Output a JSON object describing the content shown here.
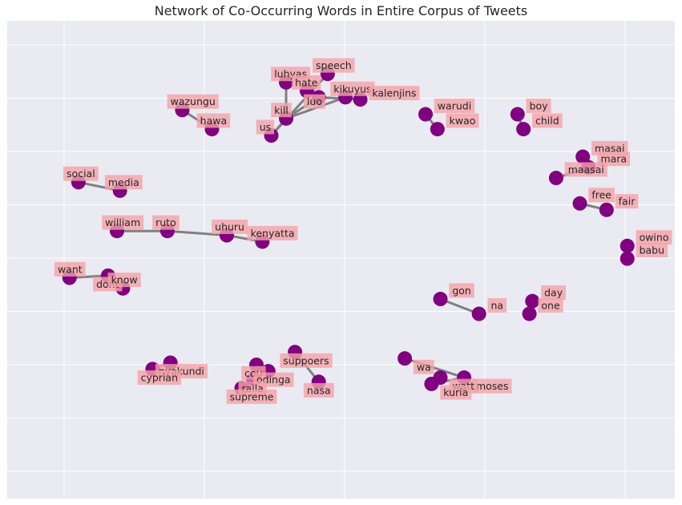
{
  "chart_data": {
    "type": "network",
    "title": "Network of Co-Occurring Words in Entire Corpus of Tweets",
    "xlim": [
      -1.15,
      1.1
    ],
    "ylim": [
      -1.15,
      1.1
    ],
    "grid": true,
    "colors": {
      "background": "#eaeaf2",
      "grid": "#ffffff",
      "node": "#800080",
      "edge": "#808080",
      "label_box": "#f4a3a8",
      "text": "#262626"
    },
    "nodes": [
      {
        "id": "speech",
        "label": "speech",
        "x": -0.11,
        "y": 0.89
      },
      {
        "id": "luhyas",
        "label": "luhyas",
        "x": -0.25,
        "y": 0.85
      },
      {
        "id": "hate",
        "label": "hate",
        "x": -0.18,
        "y": 0.81
      },
      {
        "id": "kikuyus",
        "label": "kikuyus",
        "x": -0.05,
        "y": 0.78
      },
      {
        "id": "kalenjins",
        "label": "kalenjins",
        "x": 0.08,
        "y": 0.76
      },
      {
        "id": "luo",
        "label": "luo",
        "x": -0.14,
        "y": 0.72
      },
      {
        "id": "kill",
        "label": "kill",
        "x": -0.25,
        "y": 0.68
      },
      {
        "id": "us",
        "label": "us",
        "x": -0.3,
        "y": 0.6
      },
      {
        "id": "wazungu",
        "label": "wazungu",
        "x": -0.6,
        "y": 0.72
      },
      {
        "id": "hawa",
        "label": "hawa",
        "x": -0.5,
        "y": 0.63
      },
      {
        "id": "warudi",
        "label": "warudi",
        "x": 0.3,
        "y": 0.7
      },
      {
        "id": "kwao",
        "label": "kwao",
        "x": 0.34,
        "y": 0.63
      },
      {
        "id": "boy",
        "label": "boy",
        "x": 0.61,
        "y": 0.7
      },
      {
        "id": "child",
        "label": "child",
        "x": 0.63,
        "y": 0.63
      },
      {
        "id": "masai",
        "label": "masai",
        "x": 0.83,
        "y": 0.5
      },
      {
        "id": "mara",
        "label": "mara",
        "x": 0.85,
        "y": 0.45
      },
      {
        "id": "maasai",
        "label": "maasai",
        "x": 0.74,
        "y": 0.4
      },
      {
        "id": "social",
        "label": "social",
        "x": -0.95,
        "y": 0.38
      },
      {
        "id": "media",
        "label": "media",
        "x": -0.81,
        "y": 0.34
      },
      {
        "id": "free",
        "label": "free",
        "x": 0.82,
        "y": 0.28
      },
      {
        "id": "fair",
        "label": "fair",
        "x": 0.91,
        "y": 0.25
      },
      {
        "id": "william",
        "label": "william",
        "x": -0.82,
        "y": 0.15
      },
      {
        "id": "ruto",
        "label": "ruto",
        "x": -0.65,
        "y": 0.15
      },
      {
        "id": "uhuru",
        "label": "uhuru",
        "x": -0.45,
        "y": 0.13
      },
      {
        "id": "kenyatta",
        "label": "kenyatta",
        "x": -0.33,
        "y": 0.1
      },
      {
        "id": "owino",
        "label": "owino",
        "x": 0.98,
        "y": 0.08
      },
      {
        "id": "babu",
        "label": "babu",
        "x": 0.98,
        "y": 0.02
      },
      {
        "id": "want",
        "label": "want",
        "x": -0.98,
        "y": -0.07
      },
      {
        "id": "dont",
        "label": "dont",
        "x": -0.85,
        "y": -0.14
      },
      {
        "id": "know",
        "label": "know",
        "x": -0.8,
        "y": -0.12
      },
      {
        "id": "gon",
        "label": "gon",
        "x": 0.35,
        "y": -0.17
      },
      {
        "id": "na",
        "label": "na",
        "x": 0.48,
        "y": -0.24
      },
      {
        "id": "day",
        "label": "day",
        "x": 0.66,
        "y": -0.18
      },
      {
        "id": "one",
        "label": "one",
        "x": 0.65,
        "y": -0.24
      },
      {
        "id": "nyakundi",
        "label": "nyakundi",
        "x": -0.64,
        "y": -0.55
      },
      {
        "id": "cyprian",
        "label": "cyprian",
        "x": -0.7,
        "y": -0.58
      },
      {
        "id": "suppoers",
        "label": "suppoers",
        "x": -0.22,
        "y": -0.5
      },
      {
        "id": "cou",
        "label": "cou",
        "x": -0.35,
        "y": -0.56
      },
      {
        "id": "odinga",
        "label": "odinga",
        "x": -0.31,
        "y": -0.59
      },
      {
        "id": "raila",
        "label": "raila",
        "x": -0.36,
        "y": -0.63
      },
      {
        "id": "nasa",
        "label": "nasa",
        "x": -0.14,
        "y": -0.64
      },
      {
        "id": "supreme",
        "label": "supreme",
        "x": -0.4,
        "y": -0.67
      },
      {
        "id": "wa",
        "label": "wa",
        "x": 0.23,
        "y": -0.53
      },
      {
        "id": "moses",
        "label": "moses",
        "x": 0.43,
        "y": -0.62
      },
      {
        "id": "wetangula",
        "label": "watt",
        "x": 0.35,
        "y": -0.62
      },
      {
        "id": "kuria",
        "label": "kuria",
        "x": 0.32,
        "y": -0.65
      }
    ],
    "node_positions": [
      {
        "id": "speech",
        "x": -0.07,
        "y": 0.85
      },
      {
        "id": "luhyas",
        "x": -0.21,
        "y": 0.81
      },
      {
        "id": "hate",
        "x": -0.14,
        "y": 0.77
      },
      {
        "id": "kikuyus",
        "x": -0.01,
        "y": 0.74
      },
      {
        "id": "kalenjins",
        "x": 0.04,
        "y": 0.73
      },
      {
        "id": "luo",
        "x": -0.1,
        "y": 0.74
      },
      {
        "id": "kill",
        "x": -0.21,
        "y": 0.64
      },
      {
        "id": "us",
        "x": -0.26,
        "y": 0.56
      },
      {
        "id": "wazungu",
        "x": -0.56,
        "y": 0.68
      },
      {
        "id": "hawa",
        "x": -0.46,
        "y": 0.59
      },
      {
        "id": "warudi",
        "x": 0.26,
        "y": 0.66
      },
      {
        "id": "kwao",
        "x": 0.3,
        "y": 0.59
      },
      {
        "id": "boy",
        "x": 0.57,
        "y": 0.66
      },
      {
        "id": "child",
        "x": 0.59,
        "y": 0.59
      },
      {
        "id": "masai",
        "x": 0.79,
        "y": 0.46
      },
      {
        "id": "mara",
        "x": 0.81,
        "y": 0.41
      },
      {
        "id": "maasai",
        "x": 0.7,
        "y": 0.36
      },
      {
        "id": "social",
        "x": -0.91,
        "y": 0.34
      },
      {
        "id": "media",
        "x": -0.77,
        "y": 0.3
      },
      {
        "id": "free",
        "x": 0.78,
        "y": 0.24
      },
      {
        "id": "fair",
        "x": 0.87,
        "y": 0.21
      },
      {
        "id": "william",
        "x": -0.78,
        "y": 0.11
      },
      {
        "id": "ruto",
        "x": -0.61,
        "y": 0.11
      },
      {
        "id": "uhuru",
        "x": -0.41,
        "y": 0.09
      },
      {
        "id": "kenyatta",
        "x": -0.29,
        "y": 0.06
      },
      {
        "id": "owino",
        "x": 0.94,
        "y": 0.04
      },
      {
        "id": "babu",
        "x": 0.94,
        "y": -0.02
      },
      {
        "id": "want",
        "x": -0.94,
        "y": -0.11
      },
      {
        "id": "dont",
        "x": -0.81,
        "y": -0.1
      },
      {
        "id": "know",
        "x": -0.76,
        "y": -0.16
      },
      {
        "id": "gon",
        "x": 0.31,
        "y": -0.21
      },
      {
        "id": "na",
        "x": 0.44,
        "y": -0.28
      },
      {
        "id": "day",
        "x": 0.62,
        "y": -0.22
      },
      {
        "id": "one",
        "x": 0.61,
        "y": -0.28
      },
      {
        "id": "nyakundi",
        "x": -0.6,
        "y": -0.51
      },
      {
        "id": "cyprian",
        "x": -0.66,
        "y": -0.54
      },
      {
        "id": "suppoers",
        "x": -0.18,
        "y": -0.46
      },
      {
        "id": "cou",
        "x": -0.31,
        "y": -0.52
      },
      {
        "id": "odinga",
        "x": -0.27,
        "y": -0.55
      },
      {
        "id": "raila",
        "x": -0.32,
        "y": -0.59
      },
      {
        "id": "nasa",
        "x": -0.1,
        "y": -0.6
      },
      {
        "id": "supreme",
        "x": -0.36,
        "y": -0.63
      },
      {
        "id": "wa",
        "x": 0.19,
        "y": -0.49
      },
      {
        "id": "moses",
        "x": 0.39,
        "y": -0.58
      },
      {
        "id": "wetangula",
        "x": 0.31,
        "y": -0.58
      },
      {
        "id": "kuria",
        "x": 0.28,
        "y": -0.61
      }
    ],
    "edges": [
      [
        "luo",
        "kill"
      ],
      [
        "luo",
        "hate"
      ],
      [
        "luo",
        "kalenjins"
      ],
      [
        "kill",
        "luhyas"
      ],
      [
        "kill",
        "us"
      ],
      [
        "kill",
        "kikuyus"
      ],
      [
        "us",
        "speech"
      ],
      [
        "wazungu",
        "hawa"
      ],
      [
        "warudi",
        "kwao"
      ],
      [
        "boy",
        "child"
      ],
      [
        "masai",
        "mara"
      ],
      [
        "mara",
        "maasai"
      ],
      [
        "social",
        "media"
      ],
      [
        "free",
        "fair"
      ],
      [
        "william",
        "ruto"
      ],
      [
        "ruto",
        "uhuru"
      ],
      [
        "uhuru",
        "kenyatta"
      ],
      [
        "owino",
        "babu"
      ],
      [
        "want",
        "dont"
      ],
      [
        "dont",
        "know"
      ],
      [
        "gon",
        "na"
      ],
      [
        "day",
        "one"
      ],
      [
        "nyakundi",
        "cyprian"
      ],
      [
        "cou",
        "raila"
      ],
      [
        "raila",
        "odinga"
      ],
      [
        "raila",
        "supreme"
      ],
      [
        "suppoers",
        "nasa"
      ],
      [
        "wa",
        "moses"
      ],
      [
        "moses",
        "kuria"
      ],
      [
        "kuria",
        "wetangula"
      ]
    ]
  }
}
